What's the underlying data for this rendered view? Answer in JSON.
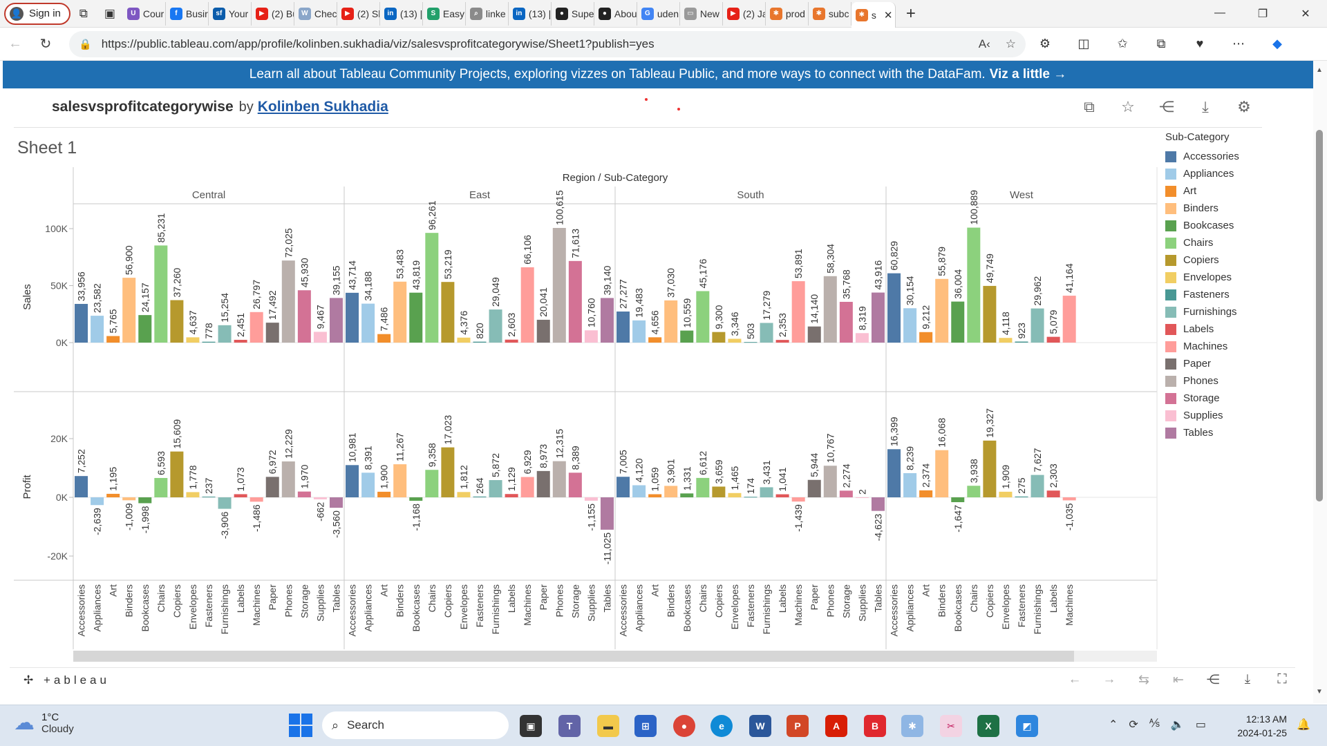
{
  "browser": {
    "signin_label": "Sign in",
    "tabs": [
      {
        "label": "Cour",
        "icon": "coursera-icon",
        "color": "#7e57c2",
        "glyph": "U"
      },
      {
        "label": "Busir",
        "icon": "facebook-icon",
        "color": "#1877f2",
        "glyph": "f"
      },
      {
        "label": "Your",
        "icon": "salesforce-icon",
        "color": "#0b5cab",
        "glyph": "sf"
      },
      {
        "label": "(2) Bu",
        "icon": "youtube-icon",
        "color": "#e62117",
        "glyph": "▶"
      },
      {
        "label": "Chec",
        "icon": "wordpress-icon",
        "color": "#8aa6c9",
        "glyph": "W"
      },
      {
        "label": "(2) Sl",
        "icon": "youtube-icon",
        "color": "#e62117",
        "glyph": "▶"
      },
      {
        "label": "(13) |",
        "icon": "linkedin-icon",
        "color": "#0a66c2",
        "glyph": "in"
      },
      {
        "label": "Easy",
        "icon": "easy-icon",
        "color": "#22a06b",
        "glyph": "S"
      },
      {
        "label": "linke",
        "icon": "search-icon",
        "color": "#8a8a8a",
        "glyph": "⌕"
      },
      {
        "label": "(13) |",
        "icon": "linkedin-icon",
        "color": "#0a66c2",
        "glyph": "in"
      },
      {
        "label": "Supe",
        "icon": "github-icon",
        "color": "#222222",
        "glyph": "●"
      },
      {
        "label": "Abou",
        "icon": "github-icon",
        "color": "#222222",
        "glyph": "●"
      },
      {
        "label": "uden",
        "icon": "google-icon",
        "color": "#4285f4",
        "glyph": "G"
      },
      {
        "label": "New",
        "icon": "page-icon",
        "color": "#9a9a9a",
        "glyph": "▭"
      },
      {
        "label": "(2) Ja",
        "icon": "youtube-icon",
        "color": "#e62117",
        "glyph": "▶"
      },
      {
        "label": "prod",
        "icon": "tableau-icon",
        "color": "#e8762d",
        "glyph": "✱"
      },
      {
        "label": "subc",
        "icon": "tableau-icon",
        "color": "#e8762d",
        "glyph": "✱"
      },
      {
        "label": "s",
        "icon": "tableau-icon",
        "color": "#e8762d",
        "glyph": "✱",
        "active": true
      }
    ],
    "url": "https://public.tableau.com/app/profile/kolinben.sukhadia/viz/salesvsprofitcategorywise/Sheet1?publish=yes"
  },
  "banner": {
    "text": "Learn all about Tableau Community Projects, exploring vizzes on Tableau Public, and more ways to connect with the DataFam.",
    "link": "Viz a little →"
  },
  "viz": {
    "title": "salesvsprofitcategorywise",
    "by": "by",
    "author": "Kolinben Sukhadia",
    "sheet": "Sheet 1"
  },
  "chart_data": {
    "type": "bar",
    "title": "Region / Sub-Category",
    "regions": [
      "Central",
      "East",
      "South",
      "West"
    ],
    "subcategories": [
      "Accessories",
      "Appliances",
      "Art",
      "Binders",
      "Bookcases",
      "Chairs",
      "Copiers",
      "Envelopes",
      "Fasteners",
      "Furnishings",
      "Labels",
      "Machines",
      "Paper",
      "Phones",
      "Storage",
      "Supplies",
      "Tables"
    ],
    "colors": {
      "Accessories": "#4e79a7",
      "Appliances": "#a0cbe8",
      "Art": "#f28e2b",
      "Binders": "#ffbe7d",
      "Bookcases": "#59a14f",
      "Chairs": "#8cd17d",
      "Copiers": "#b6992d",
      "Envelopes": "#f1ce63",
      "Fasteners": "#499894",
      "Furnishings": "#86bcb6",
      "Labels": "#e15759",
      "Machines": "#ff9d9a",
      "Paper": "#79706e",
      "Phones": "#bab0ac",
      "Storage": "#d37295",
      "Supplies": "#fabfd2",
      "Tables": "#b07aa1"
    },
    "sales": {
      "label": "Sales",
      "ticks": [
        "100K",
        "50K",
        "0K"
      ],
      "tick_values": [
        100000,
        50000,
        0
      ],
      "ylim": [
        0,
        110000
      ],
      "Central": [
        33956,
        23582,
        5765,
        56900,
        24157,
        85231,
        37260,
        4637,
        778,
        15254,
        2451,
        26797,
        17492,
        72025,
        45930,
        9467,
        39155
      ],
      "East": [
        43714,
        34188,
        7486,
        53483,
        43819,
        96261,
        53219,
        4376,
        820,
        29049,
        2603,
        66106,
        20041,
        100615,
        71613,
        10760,
        39140
      ],
      "South": [
        27277,
        19483,
        4656,
        37030,
        10559,
        45176,
        9300,
        3346,
        503,
        17279,
        2353,
        53891,
        14140,
        58304,
        35768,
        8319,
        43916
      ],
      "West": [
        60829,
        30154,
        9212,
        55879,
        36004,
        100889,
        49749,
        4118,
        923,
        29962,
        5079,
        41164,
        null,
        null,
        null,
        null,
        null
      ]
    },
    "profit": {
      "label": "Profit",
      "ticks": [
        "20K",
        "0K",
        "-20K"
      ],
      "tick_values": [
        20000,
        0,
        -20000
      ],
      "ylim": [
        -25000,
        23000
      ],
      "Central": [
        7252,
        -2639,
        1195,
        -1009,
        -1998,
        6593,
        15609,
        1778,
        237,
        -3906,
        1073,
        -1486,
        6972,
        12229,
        1970,
        -662,
        -3560
      ],
      "East": [
        10981,
        8391,
        1900,
        11267,
        -1168,
        9358,
        17023,
        1812,
        264,
        5872,
        1129,
        6929,
        8973,
        12315,
        8389,
        -1155,
        -11025
      ],
      "South": [
        7005,
        4120,
        1059,
        3901,
        1331,
        6612,
        3659,
        1465,
        174,
        3431,
        1041,
        -1439,
        5944,
        10767,
        2274,
        2,
        -4623
      ],
      "West": [
        16399,
        8239,
        2374,
        16068,
        -1647,
        3938,
        19327,
        1909,
        275,
        7627,
        2303,
        -1035,
        null,
        null,
        null,
        null,
        null
      ]
    },
    "legend_title": "Sub-Category",
    "legend_position": "right"
  },
  "footer": {
    "logo": "+ableau"
  },
  "taskbar": {
    "temp": "1°C",
    "weather": "Cloudy",
    "search_placeholder": "Search",
    "time": "12:13 AM",
    "date": "2024-01-25"
  }
}
